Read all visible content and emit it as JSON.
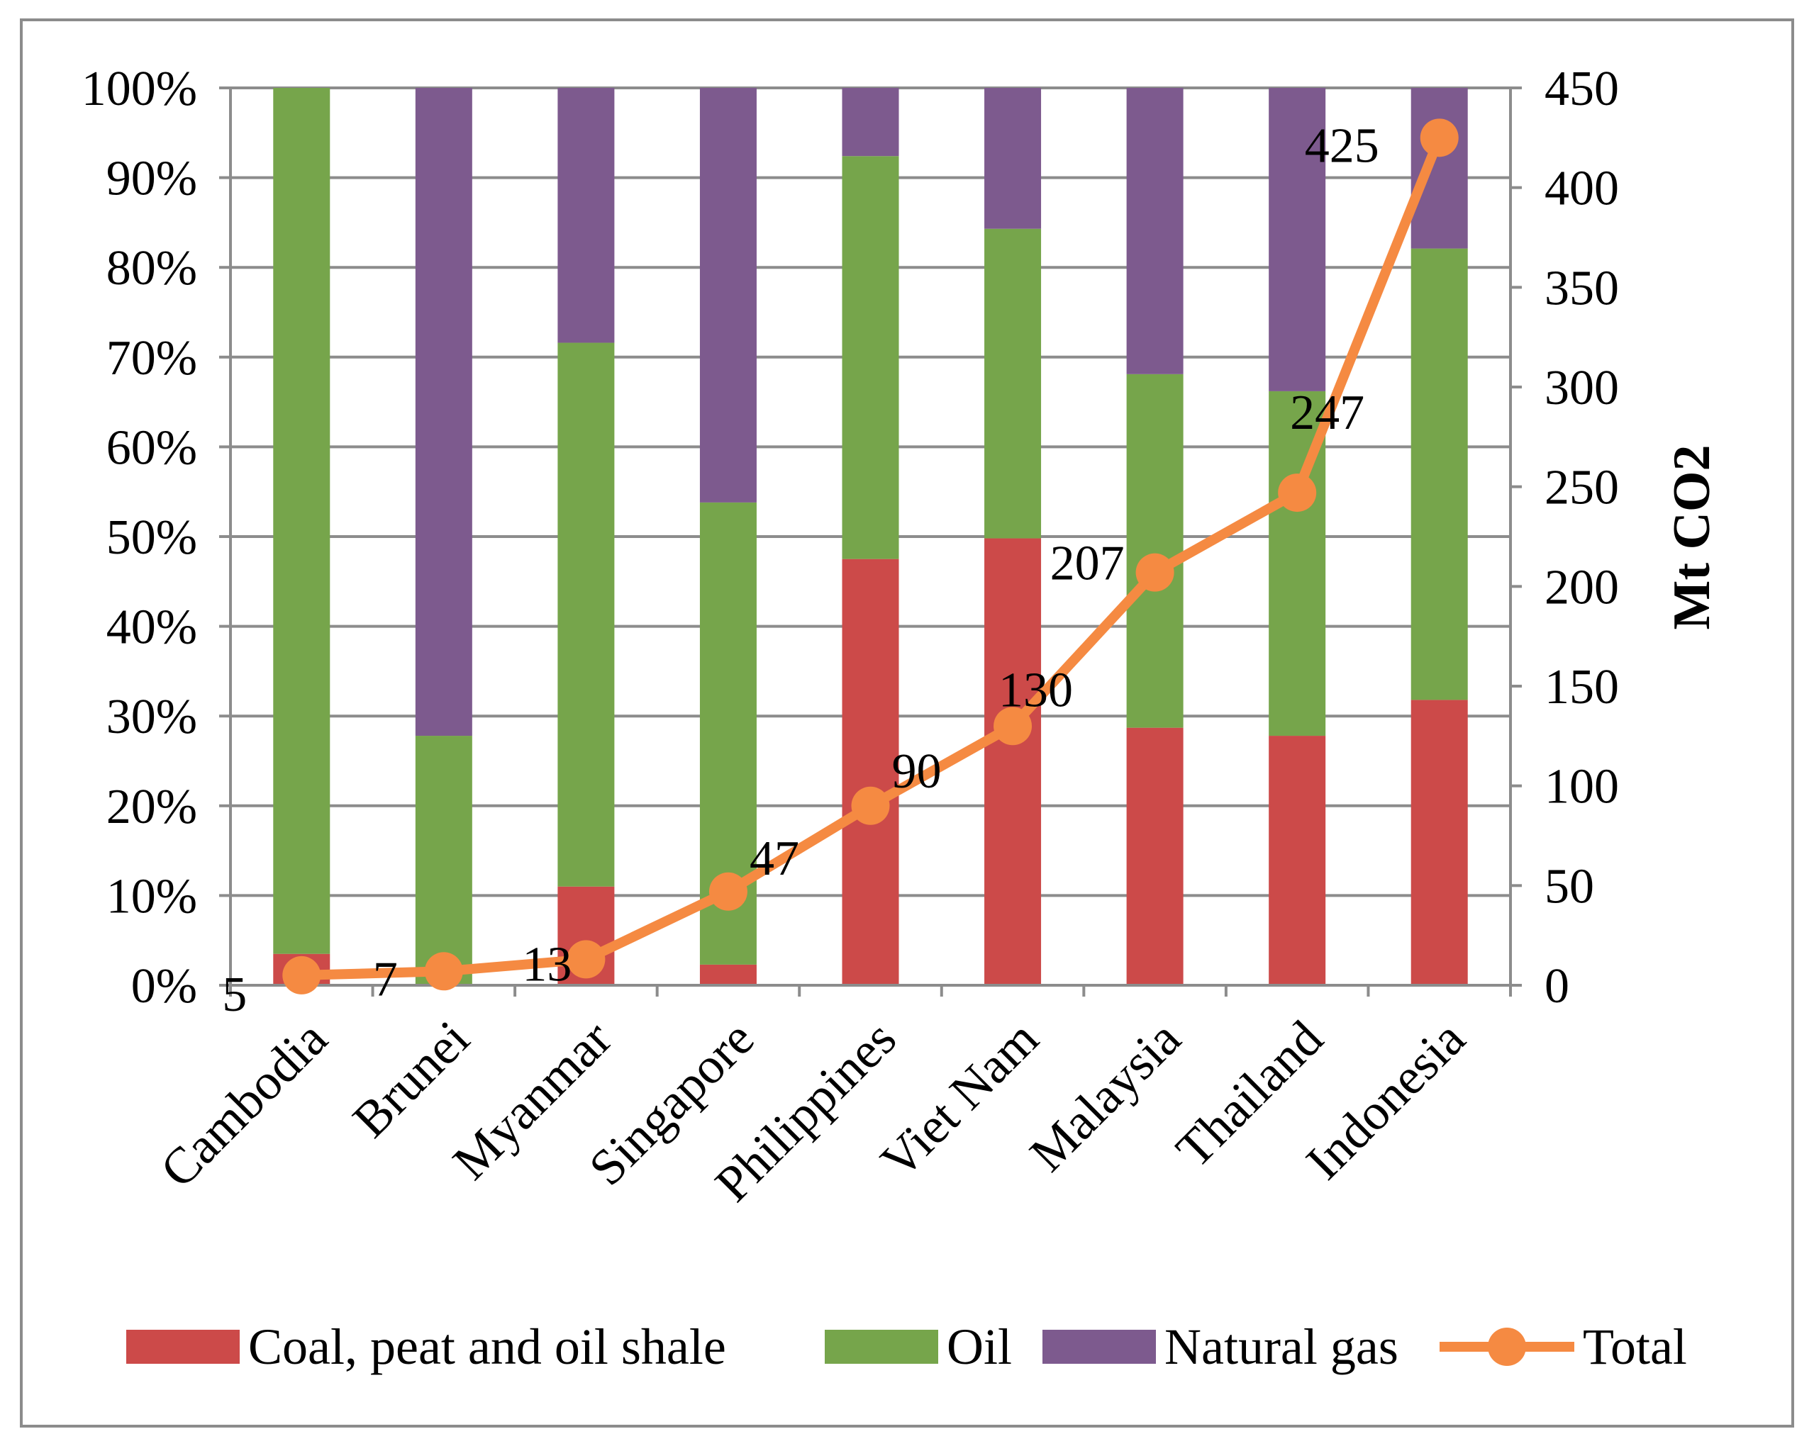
{
  "chart_data": {
    "type": "bar",
    "stacked": true,
    "stack_mode": "percent",
    "categories": [
      "Cambodia",
      "Brunei",
      "Myanmar",
      "Singapore",
      "Philippines",
      "Viet Nam",
      "Malaysia",
      "Thailand",
      "Indonesia"
    ],
    "series": [
      {
        "name": "Coal, peat and oil shale",
        "axis": "left",
        "color": "#CC4A49",
        "values": [
          3.5,
          0,
          11,
          2.3,
          47.5,
          49.8,
          28.7,
          27.8,
          31.8
        ]
      },
      {
        "name": "Oil",
        "axis": "left",
        "color": "#76A54B",
        "values": [
          96.5,
          27.8,
          60.6,
          51.5,
          44.9,
          34.5,
          39.4,
          38.4,
          50.3
        ]
      },
      {
        "name": "Natural gas",
        "axis": "left",
        "color": "#7D5A8E",
        "values": [
          0,
          72.2,
          28.4,
          46.2,
          7.6,
          15.7,
          31.9,
          33.8,
          17.9
        ]
      },
      {
        "name": "Total",
        "type": "line",
        "axis": "right",
        "color": "#F58A42",
        "values": [
          5,
          7,
          13,
          47,
          90,
          130,
          207,
          247,
          425
        ],
        "labels": [
          "5",
          "7",
          "13",
          "47",
          "90",
          "130",
          "207",
          "247",
          "425"
        ]
      }
    ],
    "y_left": {
      "ticks": [
        "0%",
        "10%",
        "20%",
        "30%",
        "40%",
        "50%",
        "60%",
        "70%",
        "80%",
        "90%",
        "100%"
      ],
      "range": [
        0,
        100
      ]
    },
    "y_right": {
      "label": "Mt CO2",
      "ticks": [
        "0",
        "50",
        "100",
        "150",
        "200",
        "250",
        "300",
        "350",
        "400",
        "450"
      ],
      "range": [
        0,
        450
      ]
    },
    "grid": true,
    "legend": {
      "position": "bottom"
    }
  }
}
